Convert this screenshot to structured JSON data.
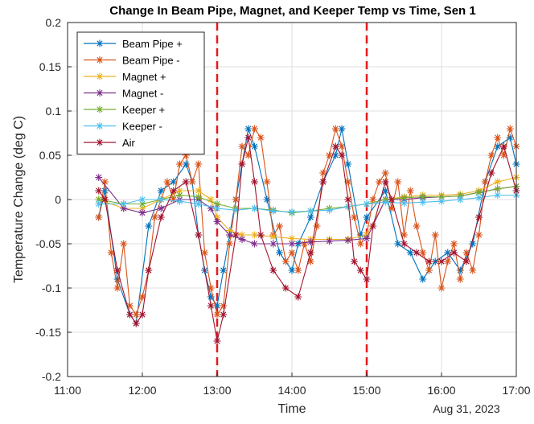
{
  "chart_data": {
    "type": "line",
    "title": "Change In Beam Pipe, Magnet, and Keeper Temp vs Time, Sen 1",
    "xlabel": "Time",
    "ylabel": "Temperature Change (deg C)",
    "date_label": "Aug 31, 2023",
    "x_ticks": [
      "11:00",
      "12:00",
      "13:00",
      "14:00",
      "15:00",
      "16:00",
      "17:00"
    ],
    "y_ticks": [
      "-0.2",
      "-0.15",
      "-0.1",
      "-0.05",
      "0",
      "0.05",
      "0.1",
      "0.15",
      "0.2"
    ],
    "xlim": [
      "11:00",
      "17:00"
    ],
    "ylim": [
      -0.2,
      0.2
    ],
    "grid": true,
    "legend_position": "top-left",
    "marker": "asterisk",
    "vertical_markers": [
      {
        "x": "13:00",
        "color": "#e41a1c",
        "style": "dashed"
      },
      {
        "x": "15:00",
        "color": "#e41a1c",
        "style": "dashed"
      }
    ],
    "series": [
      {
        "name": "Beam Pipe +",
        "color": "#0072bd",
        "x": [
          "11:25",
          "11:30",
          "11:40",
          "11:50",
          "11:55",
          "12:05",
          "12:15",
          "12:25",
          "12:35",
          "12:40",
          "12:45",
          "12:50",
          "12:55",
          "13:00",
          "13:05",
          "13:15",
          "13:20",
          "13:25",
          "13:30",
          "13:40",
          "13:50",
          "14:00",
          "14:05",
          "14:15",
          "14:25",
          "14:35",
          "14:40",
          "14:45",
          "14:55",
          "15:00",
          "15:15",
          "15:25",
          "15:35",
          "15:45",
          "15:55",
          "16:05",
          "16:15",
          "16:25",
          "16:35",
          "16:45",
          "16:55",
          "17:00"
        ],
        "y": [
          -0.02,
          0.01,
          -0.09,
          -0.13,
          -0.14,
          -0.03,
          0.01,
          0.02,
          0.04,
          0.02,
          -0.04,
          -0.08,
          -0.11,
          -0.12,
          -0.08,
          0.0,
          0.04,
          0.08,
          0.06,
          0.0,
          -0.06,
          -0.08,
          -0.05,
          -0.02,
          0.02,
          0.05,
          0.08,
          0.04,
          -0.04,
          -0.02,
          0.01,
          -0.05,
          -0.06,
          -0.09,
          -0.07,
          -0.06,
          -0.08,
          -0.05,
          0.02,
          0.06,
          0.07,
          0.04
        ]
      },
      {
        "name": "Beam Pipe -",
        "color": "#d95319",
        "x": [
          "11:25",
          "11:30",
          "11:35",
          "11:40",
          "11:45",
          "11:50",
          "11:55",
          "12:00",
          "12:05",
          "12:10",
          "12:15",
          "12:20",
          "12:25",
          "12:30",
          "12:35",
          "12:40",
          "12:45",
          "12:50",
          "12:55",
          "13:00",
          "13:05",
          "13:10",
          "13:15",
          "13:20",
          "13:25",
          "13:30",
          "13:35",
          "13:40",
          "13:45",
          "13:50",
          "13:55",
          "14:00",
          "14:05",
          "14:10",
          "14:15",
          "14:20",
          "14:25",
          "14:30",
          "14:35",
          "14:40",
          "14:45",
          "14:50",
          "14:55",
          "15:00",
          "15:05",
          "15:10",
          "15:15",
          "15:20",
          "15:25",
          "15:30",
          "15:35",
          "15:40",
          "15:45",
          "15:50",
          "15:55",
          "16:00",
          "16:05",
          "16:10",
          "16:15",
          "16:20",
          "16:25",
          "16:30",
          "16:35",
          "16:40",
          "16:45",
          "16:50",
          "16:55",
          "17:00"
        ],
        "y": [
          -0.02,
          0.02,
          -0.06,
          -0.1,
          -0.05,
          -0.12,
          -0.13,
          -0.11,
          -0.08,
          -0.02,
          0.0,
          0.02,
          0.0,
          0.04,
          0.05,
          0.02,
          0.04,
          -0.06,
          -0.1,
          -0.13,
          -0.12,
          -0.05,
          0.0,
          0.06,
          0.05,
          0.08,
          0.07,
          0.02,
          -0.04,
          -0.03,
          -0.07,
          -0.06,
          -0.08,
          -0.05,
          -0.07,
          -0.03,
          0.03,
          0.05,
          0.08,
          0.06,
          0.02,
          -0.02,
          -0.05,
          -0.04,
          0.0,
          0.02,
          0.03,
          -0.01,
          0.02,
          -0.04,
          0.01,
          -0.03,
          -0.06,
          -0.08,
          -0.04,
          -0.1,
          -0.07,
          -0.05,
          -0.09,
          -0.06,
          -0.08,
          -0.04,
          0.02,
          0.05,
          0.07,
          0.05,
          0.08,
          0.06
        ]
      },
      {
        "name": "Magnet +",
        "color": "#edb120",
        "x": [
          "11:25",
          "11:45",
          "12:00",
          "12:15",
          "12:30",
          "12:45",
          "12:55",
          "13:00",
          "13:10",
          "13:20",
          "13:30",
          "13:45",
          "14:00",
          "14:15",
          "14:30",
          "14:45",
          "15:00",
          "15:15",
          "15:30",
          "15:45",
          "16:00",
          "16:15",
          "16:30",
          "16:45",
          "17:00"
        ],
        "y": [
          0.0,
          -0.01,
          -0.01,
          0.0,
          0.01,
          0.01,
          0.0,
          -0.02,
          -0.035,
          -0.04,
          -0.04,
          -0.042,
          -0.044,
          -0.045,
          -0.045,
          -0.045,
          -0.04,
          0.0,
          0.003,
          0.005,
          0.005,
          0.006,
          0.01,
          0.02,
          0.025
        ]
      },
      {
        "name": "Magnet -",
        "color": "#7e2f8e",
        "x": [
          "11:25",
          "11:45",
          "12:00",
          "12:15",
          "12:30",
          "12:45",
          "12:55",
          "13:00",
          "13:10",
          "13:20",
          "13:30",
          "13:45",
          "14:00",
          "14:15",
          "14:30",
          "14:45",
          "15:00",
          "15:15",
          "15:30",
          "15:45",
          "16:00",
          "16:15",
          "16:30",
          "16:45",
          "17:00"
        ],
        "y": [
          0.025,
          -0.01,
          -0.015,
          -0.01,
          0.0,
          0.0,
          -0.01,
          -0.025,
          -0.04,
          -0.045,
          -0.05,
          -0.05,
          -0.05,
          -0.048,
          -0.047,
          -0.046,
          -0.044,
          0.0,
          0.0,
          0.002,
          0.003,
          0.004,
          0.008,
          0.012,
          0.015
        ]
      },
      {
        "name": "Keeper +",
        "color": "#77ac30",
        "x": [
          "11:25",
          "11:45",
          "12:00",
          "12:15",
          "12:30",
          "12:45",
          "13:00",
          "13:15",
          "13:30",
          "13:45",
          "14:00",
          "14:15",
          "14:30",
          "14:45",
          "15:00",
          "15:15",
          "15:30",
          "15:45",
          "16:00",
          "16:15",
          "16:30",
          "16:45",
          "17:00"
        ],
        "y": [
          0.0,
          -0.005,
          -0.005,
          0.0,
          0.005,
          0.003,
          -0.005,
          -0.01,
          -0.01,
          -0.012,
          -0.015,
          -0.013,
          -0.01,
          -0.008,
          -0.005,
          0.0,
          0.002,
          0.003,
          0.003,
          0.004,
          0.008,
          0.012,
          0.015
        ]
      },
      {
        "name": "Keeper -",
        "color": "#4dbeee",
        "x": [
          "11:25",
          "11:45",
          "12:00",
          "12:15",
          "12:30",
          "12:45",
          "13:00",
          "13:15",
          "13:30",
          "13:45",
          "14:00",
          "14:15",
          "14:30",
          "14:45",
          "15:00",
          "15:15",
          "15:30",
          "15:45",
          "16:00",
          "16:15",
          "16:30",
          "16:45",
          "17:00"
        ],
        "y": [
          -0.005,
          -0.005,
          0.0,
          0.0,
          -0.002,
          -0.005,
          -0.01,
          -0.012,
          -0.01,
          -0.013,
          -0.014,
          -0.013,
          -0.012,
          -0.008,
          -0.005,
          -0.003,
          -0.004,
          -0.003,
          -0.002,
          0.0,
          0.002,
          0.005,
          0.005
        ]
      },
      {
        "name": "Air",
        "color": "#a2142f",
        "x": [
          "11:25",
          "11:30",
          "11:40",
          "11:50",
          "11:55",
          "12:00",
          "12:05",
          "12:15",
          "12:25",
          "12:35",
          "12:45",
          "12:55",
          "13:00",
          "13:05",
          "13:15",
          "13:20",
          "13:25",
          "13:30",
          "13:35",
          "13:45",
          "13:55",
          "14:05",
          "14:15",
          "14:25",
          "14:35",
          "14:40",
          "14:45",
          "14:50",
          "14:55",
          "15:00",
          "15:05",
          "15:15",
          "15:20",
          "15:30",
          "15:40",
          "15:50",
          "16:00",
          "16:10",
          "16:20",
          "16:30",
          "16:40",
          "16:50",
          "17:00"
        ],
        "y": [
          0.01,
          0.0,
          -0.08,
          -0.13,
          -0.14,
          -0.13,
          -0.08,
          -0.02,
          0.01,
          0.02,
          -0.04,
          -0.12,
          -0.16,
          -0.13,
          -0.04,
          0.04,
          0.07,
          0.02,
          -0.04,
          -0.08,
          -0.1,
          -0.11,
          -0.06,
          0.02,
          0.06,
          0.05,
          0.0,
          -0.07,
          -0.08,
          -0.09,
          -0.03,
          0.02,
          0.0,
          -0.05,
          -0.06,
          -0.07,
          -0.07,
          -0.06,
          -0.07,
          -0.02,
          0.03,
          0.06,
          0.01
        ]
      }
    ]
  }
}
